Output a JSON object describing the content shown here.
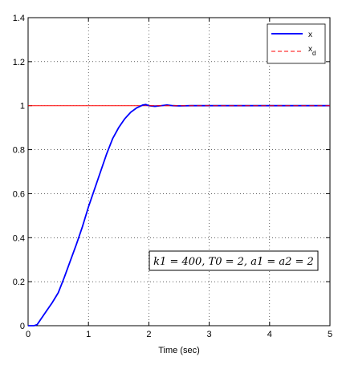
{
  "chart_data": {
    "type": "line",
    "xlabel": "Time (sec)",
    "ylabel": "",
    "xlim": [
      0,
      5
    ],
    "ylim": [
      0,
      1.4
    ],
    "xticks": [
      "0",
      "1",
      "2",
      "3",
      "4",
      "5"
    ],
    "yticks": [
      "0",
      "0.2",
      "0.4",
      "0.6",
      "0.8",
      "1",
      "1.2",
      "1.4"
    ],
    "grid": true,
    "legend_position": "top-right",
    "series": [
      {
        "name": "x",
        "legend_main": "x",
        "legend_sub": "",
        "color": "#0000ff",
        "style": "solid",
        "x": [
          0,
          0.1,
          0.15,
          0.2,
          0.3,
          0.4,
          0.5,
          0.6,
          0.7,
          0.8,
          0.9,
          1.0,
          1.1,
          1.2,
          1.3,
          1.4,
          1.5,
          1.6,
          1.7,
          1.8,
          1.9,
          1.95,
          2.0,
          2.1,
          2.2,
          2.3,
          2.4,
          2.5,
          2.7,
          3.0,
          3.5,
          4.0,
          4.5,
          5.0
        ],
        "y": [
          0,
          0,
          0.005,
          0.025,
          0.065,
          0.105,
          0.15,
          0.22,
          0.295,
          0.37,
          0.45,
          0.54,
          0.62,
          0.7,
          0.78,
          0.85,
          0.9,
          0.94,
          0.97,
          0.99,
          1.003,
          1.005,
          1.0,
          0.997,
          1.0,
          1.003,
          1.0,
          0.999,
          1.0,
          1.0,
          1.0,
          1.0,
          1.0,
          1.0
        ]
      },
      {
        "name": "x_d",
        "legend_main": "x",
        "legend_sub": "d",
        "color": "#ff0000",
        "style": "dashed",
        "x": [
          0,
          5
        ],
        "y": [
          1,
          1
        ]
      }
    ],
    "annotation": "k1 = 400, T0 = 2, a1 = a2 = 2"
  }
}
